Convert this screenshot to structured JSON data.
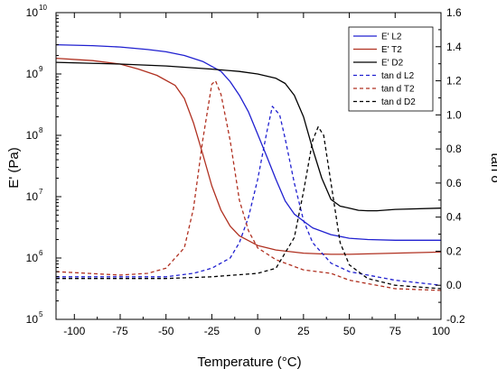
{
  "chart_data": {
    "type": "line",
    "xlabel": "Temperature (°C)",
    "ylabel": "E' (Pa)",
    "y2label": "tan δ",
    "xlim": [
      -110,
      100
    ],
    "ylim": [
      100000,
      10000000000
    ],
    "y_scale": "log",
    "y2lim": [
      -0.2,
      1.6
    ],
    "grid": false,
    "legend_position": "top-right",
    "x_ticks": [
      {
        "value": -100,
        "label": "-100"
      },
      {
        "value": -75,
        "label": "-75"
      },
      {
        "value": -50,
        "label": "-50"
      },
      {
        "value": -25,
        "label": "-25"
      },
      {
        "value": 0,
        "label": "0"
      },
      {
        "value": 25,
        "label": "25"
      },
      {
        "value": 50,
        "label": "50"
      },
      {
        "value": 75,
        "label": "75"
      },
      {
        "value": 100,
        "label": "100"
      }
    ],
    "y_ticks": [
      {
        "exp": 5,
        "label": "10",
        "sup": "5"
      },
      {
        "exp": 6,
        "label": "10",
        "sup": "6"
      },
      {
        "exp": 7,
        "label": "10",
        "sup": "7"
      },
      {
        "exp": 8,
        "label": "10",
        "sup": "8"
      },
      {
        "exp": 9,
        "label": "10",
        "sup": "9"
      },
      {
        "exp": 10,
        "label": "10",
        "sup": "10"
      }
    ],
    "y2_ticks": [
      {
        "value": -0.2,
        "label": "-0.2"
      },
      {
        "value": 0.0,
        "label": "0.0"
      },
      {
        "value": 0.2,
        "label": "0.2"
      },
      {
        "value": 0.4,
        "label": "0.4"
      },
      {
        "value": 0.6,
        "label": "0.6"
      },
      {
        "value": 0.8,
        "label": "0.8"
      },
      {
        "value": 1.0,
        "label": "1.0"
      },
      {
        "value": 1.2,
        "label": "1.2"
      },
      {
        "value": 1.4,
        "label": "1.4"
      },
      {
        "value": 1.6,
        "label": "1.6"
      }
    ],
    "series": [
      {
        "name": "E' L2",
        "axis": "left",
        "color": "#2020d0",
        "dash": false,
        "x": [
          -110,
          -90,
          -75,
          -60,
          -50,
          -40,
          -30,
          -20,
          -15,
          -10,
          -5,
          0,
          5,
          10,
          15,
          20,
          25,
          30,
          40,
          50,
          60,
          75,
          100
        ],
        "y": [
          3000000000.0,
          2900000000.0,
          2750000000.0,
          2500000000.0,
          2300000000.0,
          2000000000.0,
          1600000000.0,
          1100000000.0,
          750000000.0,
          450000000.0,
          240000000.0,
          105000000.0,
          45000000.0,
          19000000.0,
          8500000.0,
          5200000.0,
          4000000.0,
          3100000.0,
          2400000.0,
          2100000.0,
          2000000.0,
          1950000.0,
          1950000.0
        ]
      },
      {
        "name": "E' T2",
        "axis": "left",
        "color": "#b03020",
        "dash": false,
        "x": [
          -110,
          -90,
          -75,
          -65,
          -55,
          -45,
          -40,
          -35,
          -30,
          -25,
          -20,
          -15,
          -10,
          0,
          10,
          25,
          40,
          50,
          75,
          100
        ],
        "y": [
          1800000000.0,
          1650000000.0,
          1450000000.0,
          1200000000.0,
          950000000.0,
          650000000.0,
          400000000.0,
          160000000.0,
          50000000.0,
          15000000.0,
          6000000.0,
          3300000.0,
          2300000.0,
          1600000.0,
          1350000.0,
          1200000.0,
          1150000.0,
          1150000.0,
          1200000.0,
          1250000.0
        ]
      },
      {
        "name": "E' D2",
        "axis": "left",
        "color": "#000000",
        "dash": false,
        "x": [
          -110,
          -75,
          -50,
          -25,
          -10,
          0,
          10,
          15,
          20,
          25,
          30,
          35,
          40,
          45,
          50,
          55,
          60,
          65,
          75,
          100
        ],
        "y": [
          1550000000.0,
          1450000000.0,
          1350000000.0,
          1200000000.0,
          1100000000.0,
          1000000000.0,
          850000000.0,
          700000000.0,
          450000000.0,
          200000000.0,
          60000000.0,
          20000000.0,
          9000000.0,
          7000000.0,
          6500000.0,
          6000000.0,
          5900000.0,
          5900000.0,
          6200000.0,
          6500000.0
        ]
      },
      {
        "name": "tan d L2",
        "axis": "right",
        "color": "#2020d0",
        "dash": true,
        "x": [
          -110,
          -75,
          -50,
          -35,
          -25,
          -15,
          -10,
          -5,
          0,
          5,
          8,
          12,
          15,
          20,
          25,
          30,
          40,
          50,
          75,
          100
        ],
        "y": [
          0.05,
          0.05,
          0.05,
          0.07,
          0.1,
          0.16,
          0.25,
          0.4,
          0.62,
          0.9,
          1.05,
          1.0,
          0.86,
          0.6,
          0.38,
          0.25,
          0.13,
          0.08,
          0.03,
          0.0
        ]
      },
      {
        "name": "tan d T2",
        "axis": "right",
        "color": "#b03020",
        "dash": true,
        "x": [
          -110,
          -75,
          -60,
          -50,
          -40,
          -35,
          -30,
          -25,
          -23,
          -20,
          -15,
          -10,
          -5,
          0,
          10,
          25,
          40,
          50,
          75,
          100
        ],
        "y": [
          0.08,
          0.06,
          0.07,
          0.1,
          0.22,
          0.45,
          0.85,
          1.18,
          1.2,
          1.12,
          0.85,
          0.5,
          0.32,
          0.22,
          0.15,
          0.09,
          0.07,
          0.03,
          -0.02,
          -0.03
        ]
      },
      {
        "name": "tan d D2",
        "axis": "right",
        "color": "#000000",
        "dash": true,
        "x": [
          -110,
          -75,
          -50,
          -25,
          0,
          10,
          20,
          25,
          30,
          33,
          36,
          40,
          45,
          50,
          60,
          75,
          100
        ],
        "y": [
          0.04,
          0.04,
          0.04,
          0.05,
          0.07,
          0.1,
          0.28,
          0.55,
          0.85,
          0.93,
          0.88,
          0.6,
          0.25,
          0.12,
          0.04,
          0.0,
          -0.02
        ]
      }
    ]
  }
}
